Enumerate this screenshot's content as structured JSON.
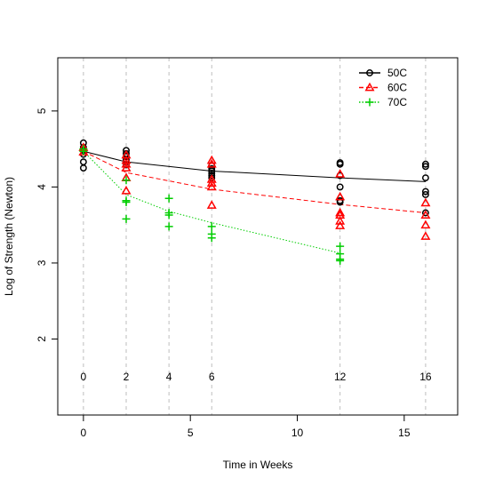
{
  "chart_data": {
    "type": "scatter",
    "xlabel": "Time in Weeks",
    "ylabel": "Log of Strength (Newton)",
    "xlim": [
      -1.2,
      17.5
    ],
    "ylim": [
      1,
      5.7
    ],
    "xticks": [
      0,
      5,
      10,
      15
    ],
    "yticks": [
      2,
      3,
      4,
      5
    ],
    "grid": "vertical dashed lines at observation times",
    "time_labels": [
      0,
      2,
      4,
      6,
      12,
      16
    ],
    "time_label_y": 1.5,
    "legend_position": "top-right",
    "series": [
      {
        "name": "50C",
        "color": "#000000",
        "marker": "circle",
        "line_style": "solid",
        "points": [
          [
            0,
            4.58
          ],
          [
            0,
            4.52
          ],
          [
            0,
            4.48
          ],
          [
            0,
            4.43
          ],
          [
            0,
            4.33
          ],
          [
            0,
            4.25
          ],
          [
            2,
            4.48
          ],
          [
            2,
            4.44
          ],
          [
            2,
            4.4
          ],
          [
            2,
            4.36
          ],
          [
            2,
            4.33
          ],
          [
            2,
            4.29
          ],
          [
            6,
            4.28
          ],
          [
            6,
            4.24
          ],
          [
            6,
            4.21
          ],
          [
            6,
            4.18
          ],
          [
            6,
            4.15
          ],
          [
            6,
            4.12
          ],
          [
            12,
            4.32
          ],
          [
            12,
            4.3
          ],
          [
            12,
            4.15
          ],
          [
            12,
            4.0
          ],
          [
            12,
            3.82
          ],
          [
            12,
            3.8
          ],
          [
            16,
            4.3
          ],
          [
            16,
            4.27
          ],
          [
            16,
            4.12
          ],
          [
            16,
            3.94
          ],
          [
            16,
            3.9
          ],
          [
            16,
            3.66
          ]
        ],
        "fit": {
          "x": [
            0,
            2,
            6,
            12,
            16
          ],
          "y": [
            4.47,
            4.33,
            4.21,
            4.12,
            4.07
          ]
        }
      },
      {
        "name": "60C",
        "color": "#ff0000",
        "marker": "triangle",
        "line_style": "dashed",
        "points": [
          [
            0,
            4.52
          ],
          [
            0,
            4.46
          ],
          [
            2,
            4.42
          ],
          [
            2,
            4.35
          ],
          [
            2,
            4.3
          ],
          [
            2,
            4.25
          ],
          [
            2,
            4.12
          ],
          [
            2,
            3.95
          ],
          [
            6,
            4.35
          ],
          [
            6,
            4.3
          ],
          [
            6,
            4.1
          ],
          [
            6,
            4.05
          ],
          [
            6,
            4.0
          ],
          [
            6,
            3.76
          ],
          [
            12,
            4.17
          ],
          [
            12,
            3.87
          ],
          [
            12,
            3.66
          ],
          [
            12,
            3.63
          ],
          [
            12,
            3.55
          ],
          [
            12,
            3.49
          ],
          [
            16,
            3.79
          ],
          [
            16,
            3.63
          ],
          [
            16,
            3.5
          ],
          [
            16,
            3.35
          ]
        ],
        "fit": {
          "x": [
            0,
            2,
            6,
            12,
            16
          ],
          "y": [
            4.47,
            4.19,
            3.97,
            3.77,
            3.66
          ]
        }
      },
      {
        "name": "70C",
        "color": "#00cd00",
        "marker": "plus",
        "line_style": "dotted",
        "points": [
          [
            0,
            4.5
          ],
          [
            0,
            4.47
          ],
          [
            2,
            4.09
          ],
          [
            2,
            3.82
          ],
          [
            2,
            3.8
          ],
          [
            2,
            3.58
          ],
          [
            4,
            3.85
          ],
          [
            4,
            3.66
          ],
          [
            4,
            3.63
          ],
          [
            4,
            3.48
          ],
          [
            6,
            3.48
          ],
          [
            6,
            3.38
          ],
          [
            6,
            3.33
          ],
          [
            12,
            3.22
          ],
          [
            12,
            3.12
          ],
          [
            12,
            3.05
          ],
          [
            12,
            3.03
          ]
        ],
        "fit": {
          "x": [
            0,
            2,
            4,
            6,
            12
          ],
          "y": [
            4.47,
            3.9,
            3.68,
            3.53,
            3.13
          ]
        }
      }
    ]
  }
}
